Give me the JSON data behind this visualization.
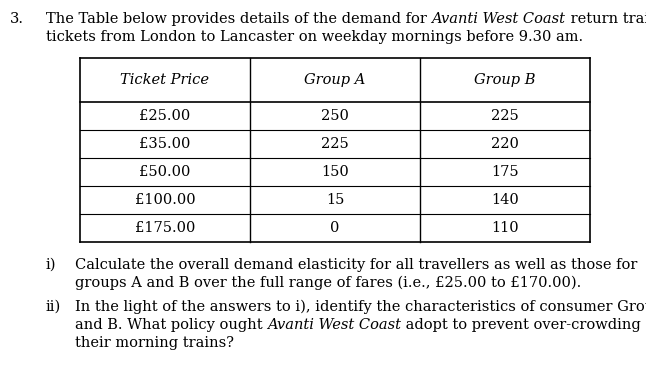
{
  "question_number": "3.",
  "background_color": "#ffffff",
  "text_color": "#000000",
  "table_border_color": "#000000",
  "font_size": 10.5,
  "table_headers": [
    "Ticket Price",
    "Group A",
    "Group B"
  ],
  "table_rows": [
    [
      "£25.00",
      "250",
      "225"
    ],
    [
      "£35.00",
      "225",
      "220"
    ],
    [
      "£50.00",
      "150",
      "175"
    ],
    [
      "£100.00",
      "15",
      "140"
    ],
    [
      "£175.00",
      "0",
      "110"
    ]
  ]
}
